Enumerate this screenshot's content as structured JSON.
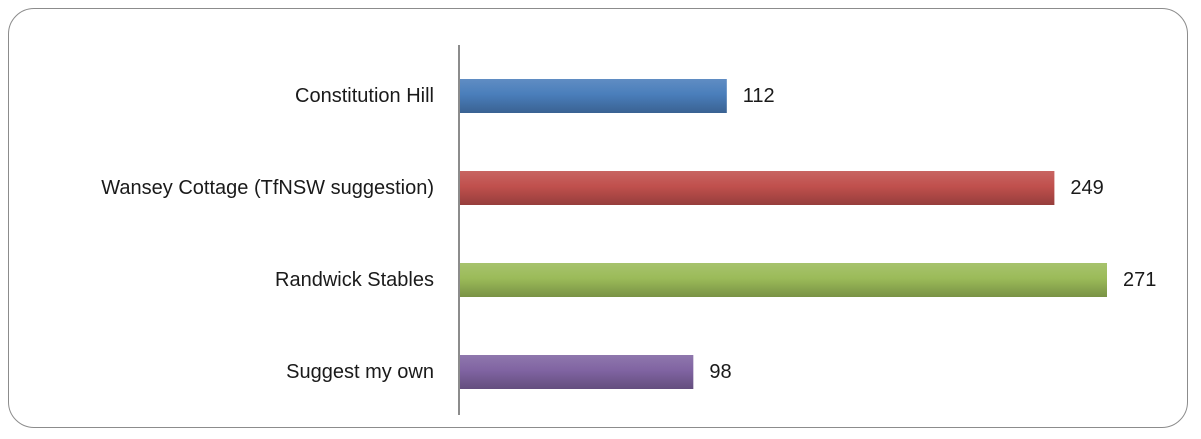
{
  "chart_data": {
    "type": "bar",
    "orientation": "horizontal",
    "categories": [
      "Constitution Hill",
      "Wansey Cottage (TfNSW suggestion)",
      "Randwick Stables",
      "Suggest my own"
    ],
    "values": [
      112,
      249,
      271,
      98
    ],
    "colors": [
      "#4a7ebb",
      "#c0504d",
      "#9bbb59",
      "#8064a2"
    ],
    "xlim": [
      0,
      271
    ],
    "grid": false,
    "legend": "none",
    "title": "",
    "xlabel": "",
    "ylabel": ""
  }
}
